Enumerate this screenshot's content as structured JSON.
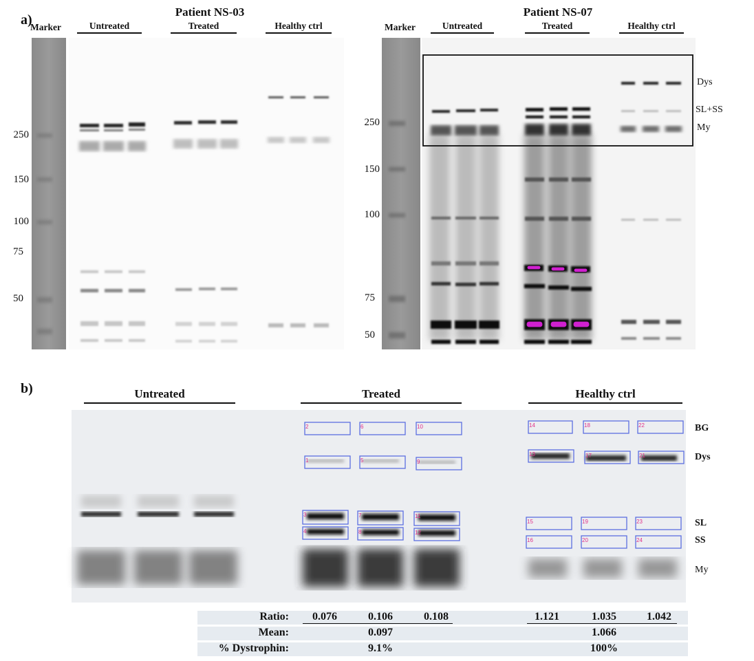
{
  "panel_a": {
    "letter": "a)",
    "left_blot": {
      "title": "Patient NS-03",
      "marker_label": "Marker",
      "groups": [
        "Untreated",
        "Treated",
        "Healthy ctrl"
      ],
      "mw_labels": [
        "250",
        "150",
        "100",
        "75",
        "50"
      ]
    },
    "right_blot": {
      "title": "Patient NS-07",
      "marker_label": "Marker",
      "groups": [
        "Untreated",
        "Treated",
        "Healthy ctrl"
      ],
      "mw_labels": [
        "250",
        "150",
        "100",
        "75",
        "50"
      ],
      "band_labels": [
        "Dys",
        "SL+SS",
        "My"
      ]
    }
  },
  "panel_b": {
    "letter": "b)",
    "groups": [
      "Untreated",
      "Treated",
      "Healthy ctrl"
    ],
    "band_labels": [
      "BG",
      "Dys",
      "SL",
      "SS",
      "My"
    ],
    "roi_numbers": [
      "1",
      "2",
      "3",
      "4",
      "5",
      "6",
      "7",
      "8",
      "9",
      "10",
      "11",
      "12",
      "13",
      "14",
      "15",
      "16",
      "17",
      "18",
      "19",
      "20",
      "21",
      "22",
      "23",
      "24"
    ],
    "quant": {
      "ratio_label": "Ratio:",
      "mean_label": "Mean:",
      "pct_label": "% Dystrophin:",
      "ratios_treated": [
        "0.076",
        "0.106",
        "0.108"
      ],
      "ratios_healthy": [
        "1.121",
        "1.035",
        "1.042"
      ],
      "mean_treated": "0.097",
      "mean_healthy": "1.066",
      "pct_treated": "9.1%",
      "pct_healthy": "100%"
    },
    "colors": {
      "roi_box": "#5b6ee0",
      "roi_number": "#e0308a",
      "saturation": "#d020d0"
    }
  }
}
